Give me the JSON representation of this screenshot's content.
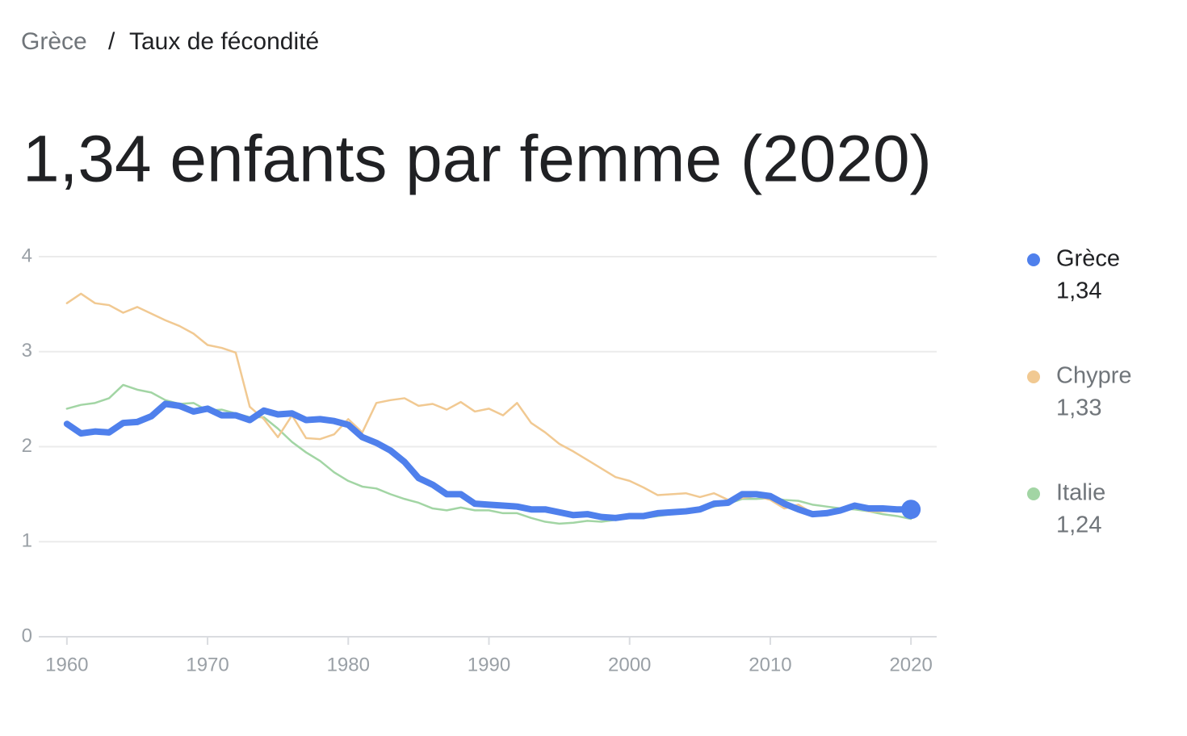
{
  "breadcrumb": {
    "items": [
      "Grèce",
      "Taux de fécondité"
    ],
    "separator": "/"
  },
  "chart_data": {
    "type": "line",
    "title": "1,34 enfants par femme (2020)",
    "x": [
      1960,
      1961,
      1962,
      1963,
      1964,
      1965,
      1966,
      1967,
      1968,
      1969,
      1970,
      1971,
      1972,
      1973,
      1974,
      1975,
      1976,
      1977,
      1978,
      1979,
      1980,
      1981,
      1982,
      1983,
      1984,
      1985,
      1986,
      1987,
      1988,
      1989,
      1990,
      1991,
      1992,
      1993,
      1994,
      1995,
      1996,
      1997,
      1998,
      1999,
      2000,
      2001,
      2002,
      2003,
      2004,
      2005,
      2006,
      2007,
      2008,
      2009,
      2010,
      2011,
      2012,
      2013,
      2014,
      2015,
      2016,
      2017,
      2018,
      2019,
      2020
    ],
    "xlim": [
      1958,
      2022
    ],
    "xticks": [
      1960,
      1970,
      1980,
      1990,
      2000,
      2010,
      2020
    ],
    "ylim": [
      0,
      4
    ],
    "yticks": [
      0,
      1,
      2,
      3,
      4
    ],
    "grid": true,
    "legend": "right",
    "series": [
      {
        "name": "Grèce",
        "color": "#4f80ec",
        "latest_label": "1,34",
        "values": [
          2.24,
          2.14,
          2.16,
          2.15,
          2.25,
          2.26,
          2.32,
          2.45,
          2.43,
          2.37,
          2.4,
          2.33,
          2.33,
          2.28,
          2.38,
          2.34,
          2.35,
          2.28,
          2.29,
          2.27,
          2.23,
          2.1,
          2.04,
          1.96,
          1.84,
          1.67,
          1.6,
          1.5,
          1.5,
          1.4,
          1.39,
          1.38,
          1.37,
          1.34,
          1.34,
          1.31,
          1.28,
          1.29,
          1.26,
          1.25,
          1.27,
          1.27,
          1.3,
          1.31,
          1.32,
          1.34,
          1.4,
          1.41,
          1.5,
          1.5,
          1.48,
          1.4,
          1.34,
          1.29,
          1.3,
          1.33,
          1.38,
          1.35,
          1.35,
          1.34,
          1.34
        ]
      },
      {
        "name": "Chypre",
        "color": "#f1c992",
        "latest_label": "1,33",
        "values": [
          3.51,
          3.61,
          3.51,
          3.49,
          3.41,
          3.47,
          3.4,
          3.33,
          3.27,
          3.19,
          3.07,
          3.04,
          2.99,
          2.42,
          2.29,
          2.1,
          2.33,
          2.09,
          2.08,
          2.13,
          2.29,
          2.15,
          2.46,
          2.49,
          2.51,
          2.43,
          2.45,
          2.39,
          2.47,
          2.37,
          2.4,
          2.33,
          2.46,
          2.25,
          2.15,
          2.03,
          1.95,
          1.86,
          1.77,
          1.68,
          1.64,
          1.57,
          1.49,
          1.5,
          1.51,
          1.47,
          1.51,
          1.44,
          1.46,
          1.48,
          1.44,
          1.35,
          1.39,
          1.3,
          1.31,
          1.32,
          1.37,
          1.32,
          1.32,
          1.33,
          1.33
        ]
      },
      {
        "name": "Italie",
        "color": "#a2d5a4",
        "latest_label": "1,24",
        "values": [
          2.4,
          2.44,
          2.46,
          2.51,
          2.65,
          2.6,
          2.57,
          2.49,
          2.45,
          2.46,
          2.38,
          2.39,
          2.35,
          2.31,
          2.31,
          2.19,
          2.05,
          1.94,
          1.85,
          1.73,
          1.64,
          1.58,
          1.56,
          1.5,
          1.45,
          1.41,
          1.35,
          1.33,
          1.36,
          1.33,
          1.33,
          1.3,
          1.3,
          1.25,
          1.21,
          1.19,
          1.2,
          1.22,
          1.21,
          1.23,
          1.26,
          1.25,
          1.27,
          1.29,
          1.34,
          1.34,
          1.37,
          1.4,
          1.45,
          1.45,
          1.46,
          1.44,
          1.43,
          1.39,
          1.37,
          1.35,
          1.34,
          1.32,
          1.29,
          1.27,
          1.24
        ]
      }
    ]
  }
}
